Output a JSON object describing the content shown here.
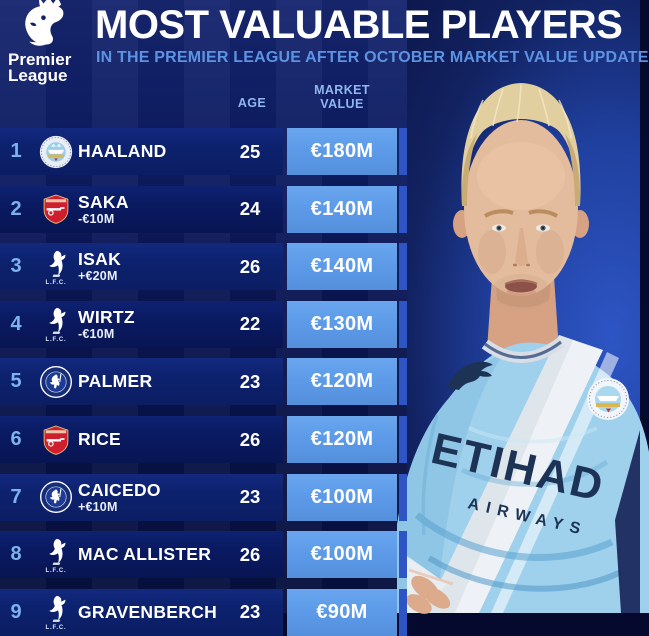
{
  "header": {
    "logo_line1": "Premier",
    "logo_line2": "League",
    "title": "MOST VALUABLE PLAYERS",
    "subtitle": "IN THE PREMIER LEAGUE AFTER OCTOBER MARKET VALUE UPDATE"
  },
  "table": {
    "columns": {
      "age": "AGE",
      "market_line1": "MARKET",
      "market_line2": "VALUE"
    },
    "rows": [
      {
        "rank": "1",
        "club": "manchester-city",
        "player": "HAALAND",
        "change": "",
        "age": "25",
        "value": "€180M"
      },
      {
        "rank": "2",
        "club": "arsenal",
        "player": "SAKA",
        "change": "-€10M",
        "age": "24",
        "value": "€140M"
      },
      {
        "rank": "3",
        "club": "liverpool",
        "player": "ISAK",
        "change": "+€20M",
        "age": "26",
        "value": "€140M"
      },
      {
        "rank": "4",
        "club": "liverpool",
        "player": "WIRTZ",
        "change": "-€10M",
        "age": "22",
        "value": "€130M"
      },
      {
        "rank": "5",
        "club": "chelsea",
        "player": "PALMER",
        "change": "",
        "age": "23",
        "value": "€120M"
      },
      {
        "rank": "6",
        "club": "arsenal",
        "player": "RICE",
        "change": "",
        "age": "26",
        "value": "€120M"
      },
      {
        "rank": "7",
        "club": "chelsea",
        "player": "CAICEDO",
        "change": "+€10M",
        "age": "23",
        "value": "€100M"
      },
      {
        "rank": "8",
        "club": "liverpool",
        "player": "MAC ALLISTER",
        "change": "",
        "age": "26",
        "value": "€100M"
      },
      {
        "rank": "9",
        "club": "liverpool",
        "player": "GRAVENBERCH",
        "change": "",
        "age": "23",
        "value": "€90M"
      }
    ]
  },
  "badges": {
    "liverpool_caption": "L.F.C."
  },
  "shirt": {
    "sponsor_line1": "ETIHAD",
    "sponsor_line2": "AIRWAYS"
  },
  "colors": {
    "value_cell": "#5d9be9",
    "row_odd": "#0d226f",
    "row_even": "#0a1a61",
    "rank_text": "#7db2f0",
    "subtitle_text": "#5d93e3",
    "column_header_text": "#8fb7ef",
    "row_cap": "#2f55c4",
    "shirt_blue": "#9fd0ec",
    "sponsor_navy": "#1d3356"
  }
}
